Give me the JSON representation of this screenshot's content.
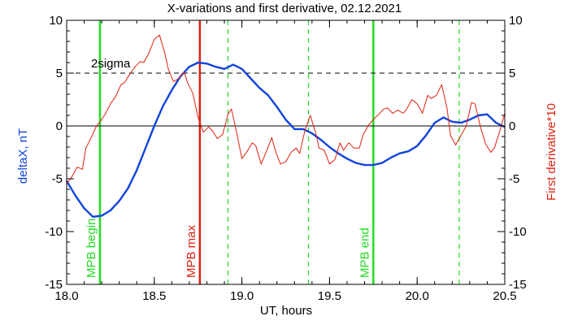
{
  "chart_data": {
    "type": "line",
    "title": "X-variations and first derivative, 02.12.2021",
    "xlabel": "UT, hours",
    "ylabel_left": "deltaX, nT",
    "ylabel_right": "First derivative*10",
    "xlim": [
      18.0,
      20.5
    ],
    "ylim": [
      -15,
      10
    ],
    "x_ticks": [
      "18.0",
      "18.5",
      "19.0",
      "19.5",
      "20.0",
      "20.5"
    ],
    "y_ticks": [
      "-15",
      "-10",
      "-5",
      "0",
      "5",
      "10"
    ],
    "reference_lines": [
      {
        "label": "2sigma",
        "y": 5,
        "style": "dashed",
        "color": "#000000"
      },
      {
        "label": "",
        "y": 0,
        "style": "solid",
        "color": "#000000"
      }
    ],
    "markers": [
      {
        "label": "MPB begin",
        "x": 18.19,
        "color": "#22dd22",
        "style": "solid"
      },
      {
        "label": "MPB max",
        "x": 18.76,
        "color": "#dd2211",
        "style": "solid"
      },
      {
        "label": "MPB end",
        "x": 19.75,
        "color": "#22dd22",
        "style": "solid"
      },
      {
        "label": "",
        "x": 18.92,
        "color": "#22dd22",
        "style": "dashed"
      },
      {
        "label": "",
        "x": 19.38,
        "color": "#22dd22",
        "style": "dashed"
      },
      {
        "label": "",
        "x": 20.24,
        "color": "#22dd22",
        "style": "dashed"
      }
    ],
    "series": [
      {
        "axis": "left",
        "color": "#1144dd",
        "x": [
          18.0,
          18.05,
          18.1,
          18.15,
          18.2,
          18.25,
          18.3,
          18.35,
          18.4,
          18.45,
          18.5,
          18.55,
          18.6,
          18.65,
          18.7,
          18.75,
          18.8,
          18.85,
          18.9,
          18.95,
          19.0,
          19.05,
          19.1,
          19.15,
          19.2,
          19.25,
          19.3,
          19.35,
          19.4,
          19.45,
          19.5,
          19.55,
          19.6,
          19.65,
          19.7,
          19.75,
          19.8,
          19.85,
          19.9,
          19.95,
          20.0,
          20.05,
          20.1,
          20.15,
          20.2,
          20.25,
          20.3,
          20.35,
          20.4,
          20.45,
          20.5
        ],
        "y": [
          -5.2,
          -6.6,
          -7.8,
          -8.6,
          -8.5,
          -8.0,
          -7.1,
          -5.9,
          -4.2,
          -2.1,
          0.0,
          1.9,
          3.4,
          4.7,
          5.6,
          6.0,
          5.9,
          5.6,
          5.4,
          5.8,
          5.4,
          4.5,
          3.6,
          2.9,
          1.8,
          0.6,
          -0.3,
          -0.3,
          -0.7,
          -1.3,
          -2.0,
          -2.6,
          -3.1,
          -3.5,
          -3.7,
          -3.7,
          -3.5,
          -3.0,
          -2.6,
          -2.4,
          -1.9,
          -0.9,
          0.3,
          0.8,
          0.4,
          0.3,
          0.6,
          1.0,
          1.1,
          0.3,
          -0.1
        ]
      },
      {
        "axis": "right",
        "color": "#dd2211",
        "x": [
          18.0,
          18.03,
          18.06,
          18.09,
          18.11,
          18.14,
          18.17,
          18.19,
          18.22,
          18.25,
          18.28,
          18.31,
          18.33,
          18.36,
          18.39,
          18.42,
          18.44,
          18.47,
          18.5,
          18.53,
          18.56,
          18.58,
          18.61,
          18.64,
          18.67,
          18.69,
          18.72,
          18.75,
          18.78,
          18.81,
          18.83,
          18.86,
          18.89,
          18.92,
          18.94,
          18.97,
          19.0,
          19.03,
          19.06,
          19.08,
          19.11,
          19.14,
          19.17,
          19.19,
          19.22,
          19.25,
          19.28,
          19.31,
          19.33,
          19.36,
          19.39,
          19.42,
          19.44,
          19.47,
          19.5,
          19.53,
          19.56,
          19.58,
          19.61,
          19.64,
          19.67,
          19.69,
          19.72,
          19.75,
          19.78,
          19.81,
          19.83,
          19.86,
          19.89,
          19.92,
          19.94,
          19.97,
          20.0,
          20.03,
          20.06,
          20.08,
          20.11,
          20.14,
          20.17,
          20.19,
          20.22,
          20.25,
          20.28,
          20.31,
          20.33,
          20.36,
          20.39,
          20.42,
          20.44,
          20.47,
          20.5
        ],
        "y": [
          -5.5,
          -4.8,
          -3.9,
          -4.1,
          -2.1,
          -1.1,
          0.0,
          0.4,
          1.1,
          2.1,
          2.8,
          3.9,
          4.1,
          4.9,
          5.6,
          6.1,
          6.0,
          6.9,
          8.2,
          8.6,
          6.9,
          5.4,
          4.2,
          4.5,
          5.1,
          4.1,
          3.1,
          0.8,
          -0.6,
          -0.1,
          -0.4,
          -1.2,
          -0.8,
          1.1,
          1.6,
          -0.6,
          -3.1,
          -2.4,
          -1.6,
          -1.9,
          -3.6,
          -2.4,
          -1.1,
          -2.3,
          -3.6,
          -3.4,
          -2.5,
          -2.1,
          -2.6,
          -0.4,
          1.0,
          -0.6,
          -2.1,
          -2.3,
          -3.6,
          -3.2,
          -1.6,
          -2.3,
          -1.6,
          -2.1,
          -2.1,
          -0.9,
          0.0,
          0.6,
          1.1,
          1.6,
          1.7,
          1.2,
          1.5,
          1.2,
          1.6,
          2.5,
          2.1,
          1.2,
          2.9,
          2.6,
          2.9,
          3.9,
          1.7,
          -0.9,
          -1.8,
          -0.9,
          0.0,
          2.2,
          2.1,
          0.0,
          -1.7,
          -2.5,
          -2.1,
          -0.6,
          1.2
        ]
      }
    ]
  },
  "colors": {
    "derivative_axis": "#dd2211",
    "deltax_axis": "#1144dd",
    "axis": "#000000"
  }
}
